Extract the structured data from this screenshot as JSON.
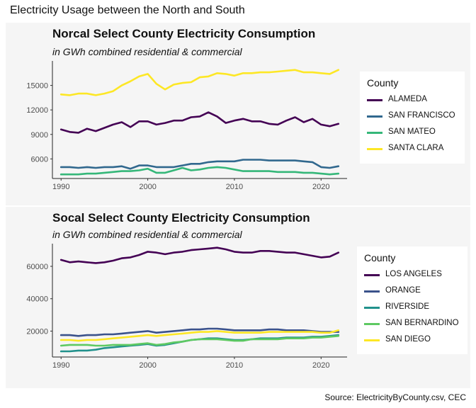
{
  "page": {
    "title": "Electricity Usage between the North and South",
    "source": "Source: ElectricityByCounty.csv, CEC"
  },
  "chart_data": [
    {
      "type": "line",
      "title": "Norcal Select County Electricity Consumption",
      "subtitle": "in GWh combined residential & commercial",
      "xlabel": "",
      "ylabel": "",
      "xlim": [
        1989,
        2023
      ],
      "ylim": [
        3600,
        18000
      ],
      "xticks": [
        "1990",
        "2000",
        "2010",
        "2020"
      ],
      "yticks": [
        "6000",
        "9000",
        "12000",
        "15000"
      ],
      "legend_title": "County",
      "legend_position": "right",
      "grid": false,
      "x": [
        1990,
        1991,
        1992,
        1993,
        1994,
        1995,
        1996,
        1997,
        1998,
        1999,
        2000,
        2001,
        2002,
        2003,
        2004,
        2005,
        2006,
        2007,
        2008,
        2009,
        2010,
        2011,
        2012,
        2013,
        2014,
        2015,
        2016,
        2017,
        2018,
        2019,
        2020,
        2021,
        2022
      ],
      "series": [
        {
          "name": "ALAMEDA",
          "color": "#440154",
          "values": [
            9600,
            9300,
            9200,
            9700,
            9400,
            9800,
            10200,
            10500,
            9900,
            10600,
            10600,
            10200,
            10400,
            10700,
            10700,
            11100,
            11200,
            11700,
            11200,
            10400,
            10700,
            10900,
            10600,
            10600,
            10300,
            10200,
            10700,
            11100,
            10500,
            10900,
            10200,
            10000,
            10300
          ]
        },
        {
          "name": "SAN FRANCISCO",
          "color": "#31688e",
          "values": [
            5000,
            5000,
            4900,
            5000,
            4900,
            5000,
            5000,
            5100,
            4800,
            5200,
            5200,
            5000,
            5000,
            5000,
            5200,
            5400,
            5400,
            5600,
            5700,
            5700,
            5700,
            5900,
            5900,
            5900,
            5800,
            5800,
            5800,
            5800,
            5700,
            5600,
            5000,
            4900,
            5100
          ]
        },
        {
          "name": "SAN MATEO",
          "color": "#35b779",
          "values": [
            4100,
            4100,
            4100,
            4200,
            4200,
            4300,
            4400,
            4500,
            4500,
            4600,
            4800,
            4300,
            4300,
            4600,
            4900,
            4600,
            4700,
            4900,
            5000,
            4900,
            4700,
            4500,
            4500,
            4500,
            4500,
            4400,
            4400,
            4400,
            4300,
            4300,
            4200,
            4100,
            4200
          ]
        },
        {
          "name": "SANTA CLARA",
          "color": "#fde725",
          "values": [
            13900,
            13800,
            14000,
            14000,
            13800,
            14000,
            14300,
            15000,
            15500,
            16100,
            16400,
            15200,
            14500,
            15100,
            15300,
            15400,
            16000,
            16100,
            16500,
            16400,
            16200,
            16500,
            16500,
            16600,
            16600,
            16700,
            16800,
            16900,
            16600,
            16600,
            16500,
            16400,
            16900
          ]
        }
      ]
    },
    {
      "type": "line",
      "title": "Socal Select County Electricity Consumption",
      "subtitle": "in GWh combined residential & commercial",
      "xlabel": "",
      "ylabel": "",
      "xlim": [
        1989,
        2023
      ],
      "ylim": [
        4000,
        74000
      ],
      "xticks": [
        "1990",
        "2000",
        "2010",
        "2020"
      ],
      "yticks": [
        "20000",
        "40000",
        "60000"
      ],
      "legend_title": "County",
      "legend_position": "right",
      "grid": false,
      "x": [
        1990,
        1991,
        1992,
        1993,
        1994,
        1995,
        1996,
        1997,
        1998,
        1999,
        2000,
        2001,
        2002,
        2003,
        2004,
        2005,
        2006,
        2007,
        2008,
        2009,
        2010,
        2011,
        2012,
        2013,
        2014,
        2015,
        2016,
        2017,
        2018,
        2019,
        2020,
        2021,
        2022
      ],
      "series": [
        {
          "name": "LOS ANGELES",
          "color": "#440154",
          "values": [
            64000,
            62500,
            63000,
            62500,
            62000,
            62500,
            63500,
            65000,
            65500,
            67000,
            69000,
            68500,
            67500,
            68500,
            69000,
            70000,
            70500,
            71000,
            71500,
            70500,
            69000,
            68500,
            68500,
            69500,
            69500,
            69000,
            68500,
            68500,
            67500,
            66500,
            65500,
            66000,
            68500
          ]
        },
        {
          "name": "ORANGE",
          "color": "#3b528b",
          "values": [
            17500,
            17500,
            17000,
            17500,
            17500,
            18000,
            18000,
            18500,
            19000,
            19500,
            20000,
            19000,
            19500,
            20000,
            20500,
            21000,
            21000,
            21500,
            21500,
            21000,
            20500,
            20500,
            20500,
            20500,
            21000,
            21000,
            20500,
            20500,
            20500,
            20000,
            19500,
            19500,
            19500
          ]
        },
        {
          "name": "RIVERSIDE",
          "color": "#21918c",
          "values": [
            7500,
            7500,
            8000,
            8000,
            8500,
            9500,
            10000,
            10500,
            11000,
            11500,
            12000,
            11000,
            11500,
            12500,
            13500,
            14500,
            15000,
            15500,
            15500,
            15000,
            14500,
            14500,
            15000,
            15500,
            15500,
            15500,
            16000,
            16000,
            16000,
            16500,
            16500,
            17000,
            17500
          ]
        },
        {
          "name": "SAN BERNARDINO",
          "color": "#5ec962",
          "values": [
            11000,
            11500,
            11500,
            11500,
            11000,
            11000,
            11500,
            11500,
            11500,
            12000,
            12500,
            11500,
            12000,
            13000,
            13500,
            14500,
            15000,
            15000,
            15000,
            14500,
            14000,
            14000,
            15000,
            15000,
            15000,
            15000,
            15500,
            15500,
            15500,
            16000,
            16000,
            16500,
            17000
          ]
        },
        {
          "name": "SAN DIEGO",
          "color": "#fde725",
          "values": [
            14500,
            14500,
            14000,
            14500,
            14500,
            15000,
            15500,
            16000,
            16500,
            17000,
            17500,
            17000,
            17500,
            18000,
            18500,
            19000,
            19500,
            19500,
            20000,
            19500,
            19000,
            19000,
            19000,
            19000,
            19500,
            19500,
            19500,
            19500,
            19500,
            19500,
            19000,
            19000,
            20500
          ]
        }
      ]
    }
  ]
}
